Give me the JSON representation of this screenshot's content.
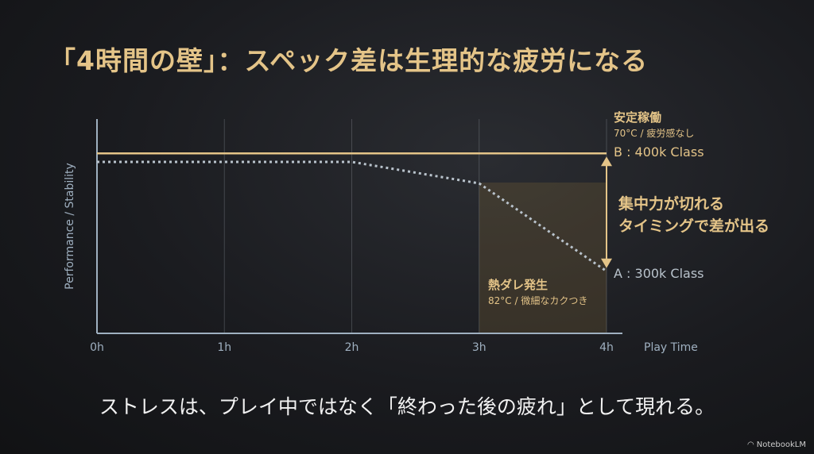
{
  "title": "「4時間の壁」：スペック差は生理的な疲労になる",
  "caption": "ストレスは、プレイ中ではなく「終わった後の疲れ」として現れる。",
  "logo": "NotebookLM",
  "colors": {
    "accent_gold": "#e4c488",
    "series_a": "#b9c3cc",
    "axis": "#9fb0c0"
  },
  "annotations": {
    "top_heading": "安定稼働",
    "top_sub": "70°C / 疲労感なし",
    "gap_line1": "集中力が切れる",
    "gap_line2": "タイミングで差が出る",
    "heat_heading": "熱ダレ発生",
    "heat_sub": "82°C / 微細なカクつき"
  },
  "chart_data": {
    "type": "line",
    "xlabel": "Play Time",
    "ylabel": "Performance / Stability",
    "x_ticks": [
      "0h",
      "1h",
      "2h",
      "3h",
      "4h"
    ],
    "xlim": [
      0,
      4
    ],
    "ylim": [
      0,
      100
    ],
    "grid": "vertical",
    "y_units_note": "",
    "series": [
      {
        "name": "B : 400k Class",
        "style": "solid",
        "color": "#e4c488",
        "x": [
          0,
          4
        ],
        "y": [
          84,
          84
        ]
      },
      {
        "name": "A : 300k Class",
        "style": "dotted",
        "color": "#b9c3cc",
        "x": [
          0,
          1,
          2,
          3,
          4
        ],
        "y": [
          80,
          80,
          80,
          70,
          29
        ]
      }
    ],
    "highlight_region": {
      "x": [
        3,
        4
      ]
    }
  }
}
